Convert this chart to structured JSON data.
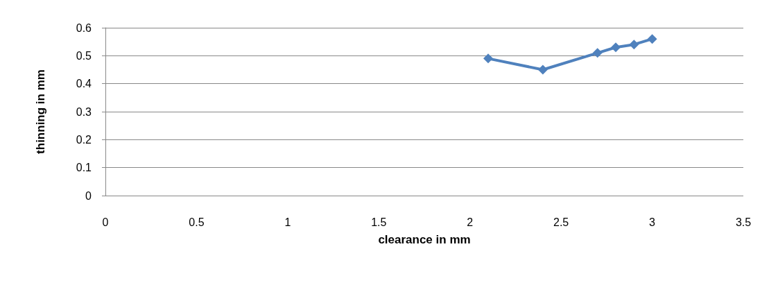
{
  "chart_data": {
    "type": "line",
    "xlabel": "clearance in mm",
    "ylabel": "thinning in mm",
    "x": [
      2.1,
      2.4,
      2.7,
      2.8,
      2.9,
      3.0
    ],
    "series": [
      {
        "color": "#4f81bd",
        "values": [
          0.49,
          0.45,
          0.51,
          0.53,
          0.54,
          0.56
        ]
      }
    ],
    "xlim": [
      0,
      3.5
    ],
    "xticks": [
      0,
      0.5,
      1,
      1.5,
      2,
      2.5,
      3,
      3.5
    ],
    "ylim": [
      0,
      0.6
    ],
    "yticks": [
      0,
      0.1,
      0.2,
      0.3,
      0.4,
      0.5,
      0.6
    ],
    "grid": "y",
    "marker": "diamond",
    "line_style": "solid"
  }
}
